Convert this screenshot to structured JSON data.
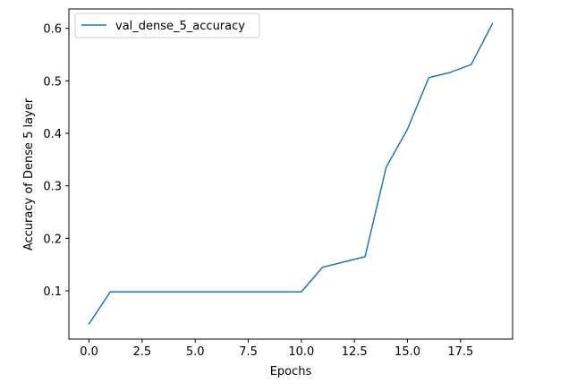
{
  "chart_data": {
    "type": "line",
    "title": "",
    "xlabel": "Epochs",
    "ylabel": "Accuracy of Dense 5 layer",
    "xlim": [
      -0.95,
      19.95
    ],
    "ylim": [
      0.008,
      0.637
    ],
    "x_ticks": [
      0,
      2.5,
      5,
      7.5,
      10,
      12.5,
      15,
      17.5
    ],
    "x_tick_labels": [
      "0.0",
      "2.5",
      "5.0",
      "7.5",
      "10.0",
      "12.5",
      "15.0",
      "17.5"
    ],
    "y_ticks": [
      0.1,
      0.2,
      0.3,
      0.4,
      0.5,
      0.6
    ],
    "y_tick_labels": [
      "0.1",
      "0.2",
      "0.3",
      "0.4",
      "0.5",
      "0.6"
    ],
    "grid": false,
    "legend_position": "upper-left",
    "series": [
      {
        "name": "val_dense_5_accuracy",
        "color": "#1f77b4",
        "x": [
          0,
          1,
          2,
          3,
          4,
          5,
          6,
          7,
          8,
          9,
          10,
          11,
          12,
          13,
          14,
          15,
          16,
          17,
          18,
          19
        ],
        "y": [
          0.037,
          0.098,
          0.098,
          0.098,
          0.098,
          0.098,
          0.098,
          0.098,
          0.098,
          0.098,
          0.098,
          0.145,
          0.155,
          0.165,
          0.336,
          0.408,
          0.506,
          0.516,
          0.531,
          0.609
        ]
      }
    ]
  }
}
